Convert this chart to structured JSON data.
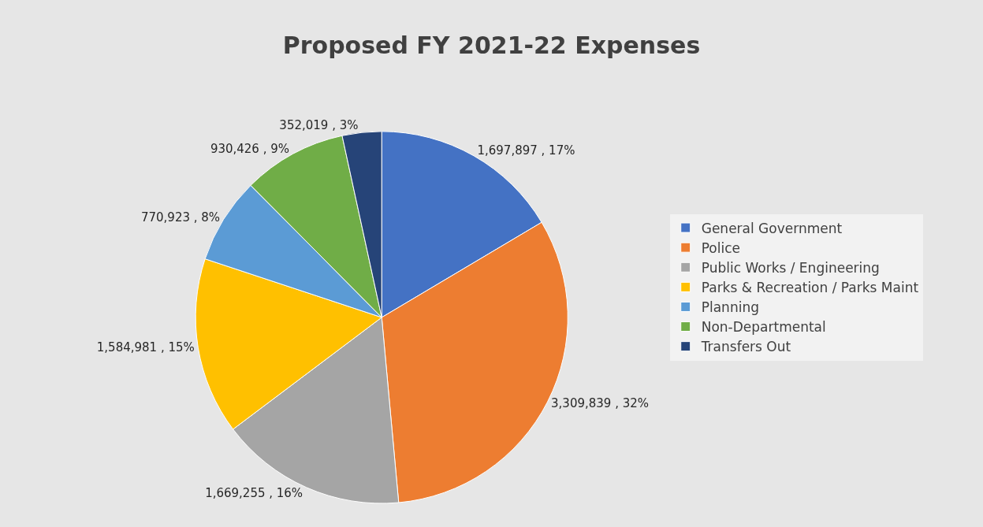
{
  "chart_data": {
    "type": "pie",
    "title": "Proposed FY 2021-22 Expenses",
    "categories": [
      "General Government",
      "Police",
      "Public Works / Engineering",
      "Parks & Recreation / Parks Maint",
      "Planning",
      "Non-Departmental",
      "Transfers Out"
    ],
    "values": [
      1697897,
      3309839,
      1669255,
      1584981,
      770923,
      930426,
      352019
    ],
    "value_labels": [
      "1,697,897 , 17%",
      "3,309,839 , 32%",
      "1,669,255 , 16%",
      "1,584,981 , 15%",
      "770,923 , 8%",
      "930,426 , 9%",
      "352,019 , 3%"
    ],
    "colors": [
      "#4472c4",
      "#ed7d31",
      "#a5a5a5",
      "#ffc000",
      "#5b9bd5",
      "#70ad47",
      "#264478"
    ],
    "legend": "right"
  }
}
